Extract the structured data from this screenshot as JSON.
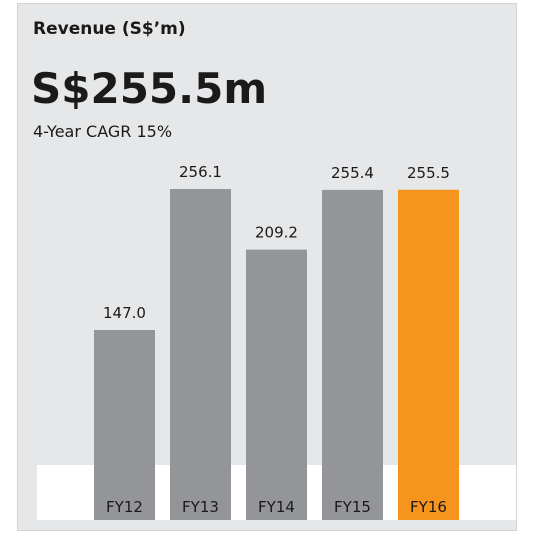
{
  "chart_data": {
    "type": "bar",
    "title": "Revenue (S$’m)",
    "headline": "S$255.5m",
    "subtitle": "4-Year CAGR 15%",
    "categories": [
      "FY12",
      "FY13",
      "FY14",
      "FY15",
      "FY16"
    ],
    "values": [
      147.0,
      256.1,
      209.2,
      255.4,
      255.5
    ],
    "value_labels": [
      "147.0",
      "256.1",
      "209.2",
      "255.4",
      "255.5"
    ],
    "colors": [
      "#939598",
      "#939598",
      "#939598",
      "#939598",
      "#f7941d"
    ]
  }
}
